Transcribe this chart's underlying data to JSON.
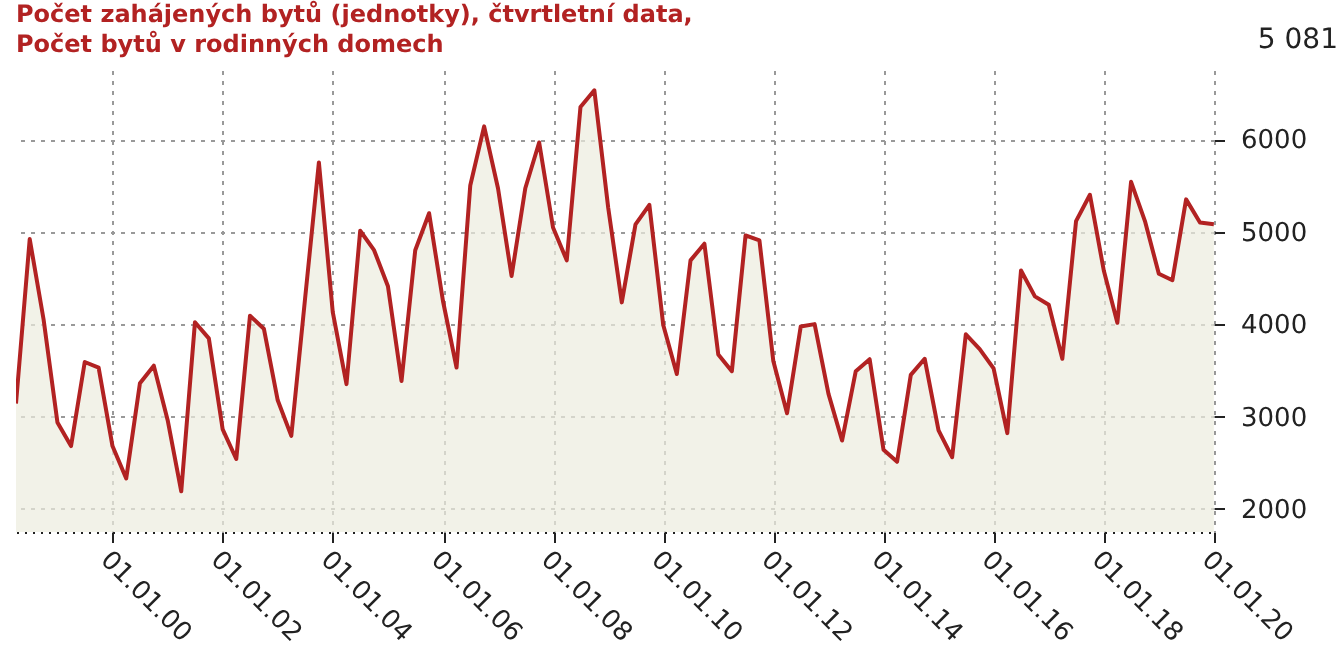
{
  "chart_data": {
    "type": "area",
    "title": "Počet zahájených bytů (jednotky), čtvrtletní data,",
    "subtitle": "Počet bytů v rodinných domech",
    "annotations": [
      "5 081"
    ],
    "x": [
      "1998-03-31",
      "1998-06-30",
      "1998-09-30",
      "1998-12-31",
      "1999-03-31",
      "1999-06-30",
      "1999-09-30",
      "1999-12-31",
      "2000-03-31",
      "2000-06-30",
      "2000-09-30",
      "2000-12-31",
      "2001-03-31",
      "2001-06-30",
      "2001-09-30",
      "2001-12-31",
      "2002-03-31",
      "2002-06-30",
      "2002-09-30",
      "2002-12-31",
      "2003-03-31",
      "2003-06-30",
      "2003-09-30",
      "2003-12-31",
      "2004-03-31",
      "2004-06-30",
      "2004-09-30",
      "2004-12-31",
      "2005-03-31",
      "2005-06-30",
      "2005-09-30",
      "2005-12-31",
      "2006-03-31",
      "2006-06-30",
      "2006-09-30",
      "2006-12-31",
      "2007-03-31",
      "2007-06-30",
      "2007-09-30",
      "2007-12-31",
      "2008-03-31",
      "2008-06-30",
      "2008-09-30",
      "2008-12-31",
      "2009-03-31",
      "2009-06-30",
      "2009-09-30",
      "2009-12-31",
      "2010-03-31",
      "2010-06-30",
      "2010-09-30",
      "2010-12-31",
      "2011-03-31",
      "2011-06-30",
      "2011-09-30",
      "2011-12-31",
      "2012-03-31",
      "2012-06-30",
      "2012-09-30",
      "2012-12-31",
      "2013-03-31",
      "2013-06-30",
      "2013-09-30",
      "2013-12-31",
      "2014-03-31",
      "2014-06-30",
      "2014-09-30",
      "2014-12-31",
      "2015-03-31",
      "2015-06-30",
      "2015-09-30",
      "2015-12-31",
      "2016-03-31",
      "2016-06-30",
      "2016-09-30",
      "2016-12-31",
      "2017-03-31",
      "2017-06-30",
      "2017-09-30",
      "2017-12-31",
      "2018-03-31",
      "2018-06-30",
      "2018-09-30",
      "2018-12-31",
      "2019-03-31",
      "2019-06-30",
      "2019-09-30",
      "2019-12-31"
    ],
    "series": [
      {
        "color": "#b22222",
        "values": [
          3140,
          4920,
          4050,
          2935,
          2680,
          3590,
          3530,
          2680,
          2330,
          3360,
          3550,
          2960,
          2190,
          4020,
          3845,
          2860,
          2540,
          4090,
          3950,
          3175,
          2790,
          4270,
          5750,
          4130,
          3350,
          5010,
          4800,
          4410,
          3385,
          4800,
          5200,
          4250,
          3530,
          5500,
          6140,
          5470,
          4520,
          5470,
          5965,
          5045,
          4690,
          6350,
          6530,
          5260,
          4235,
          5080,
          5290,
          3990,
          3460,
          4690,
          4870,
          3670,
          3490,
          4960,
          4905,
          3600,
          3035,
          3975,
          4000,
          3245,
          2740,
          3490,
          3620,
          2640,
          2510,
          3450,
          3625,
          2850,
          2560,
          3890,
          3730,
          3520,
          2820,
          4580,
          4300,
          4210,
          3625,
          5115,
          5400,
          4580,
          4015,
          5540,
          5115,
          4545,
          4475,
          5350,
          5100,
          5081
        ]
      }
    ],
    "xlim": [
      "1998-03-31",
      "2020-01-01"
    ],
    "xticks": [
      {
        "value": "2000-01-01",
        "label": "01.01.00"
      },
      {
        "value": "2002-01-01",
        "label": "01.01.02"
      },
      {
        "value": "2004-01-01",
        "label": "01.01.04"
      },
      {
        "value": "2006-01-01",
        "label": "01.01.06"
      },
      {
        "value": "2008-01-01",
        "label": "01.01.08"
      },
      {
        "value": "2010-01-01",
        "label": "01.01.10"
      },
      {
        "value": "2012-01-01",
        "label": "01.01.12"
      },
      {
        "value": "2014-01-01",
        "label": "01.01.14"
      },
      {
        "value": "2016-01-01",
        "label": "01.01.16"
      },
      {
        "value": "2018-01-01",
        "label": "01.01.18"
      },
      {
        "value": "2020-01-01",
        "label": "01.01.20"
      }
    ],
    "ylim": [
      1750,
      6750
    ],
    "yticks": [
      2000,
      3000,
      4000,
      5000,
      6000
    ],
    "grid": true
  }
}
